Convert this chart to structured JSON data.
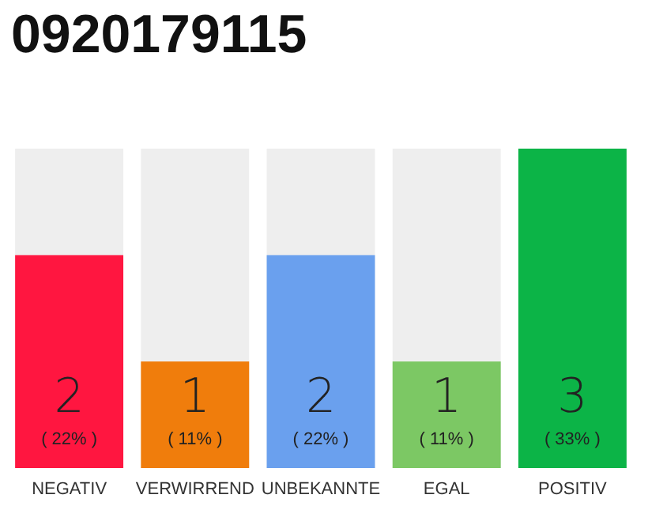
{
  "chart_data": {
    "type": "bar",
    "title": "0920179115",
    "categories": [
      "NEGATIV",
      "VERWIRREND",
      "UNBEKANNTE",
      "EGAL",
      "POSITIV"
    ],
    "values": [
      2,
      1,
      2,
      1,
      3
    ],
    "colors": [
      "#ff1640",
      "#f07d0c",
      "#6aa0ee",
      "#7cc864",
      "#0cb447"
    ],
    "value_labels": [
      "2\n( 22% )",
      "1\n( 11% )",
      "2\n( 22% )",
      "1\n( 11% )",
      "3\n( 33% )"
    ]
  }
}
